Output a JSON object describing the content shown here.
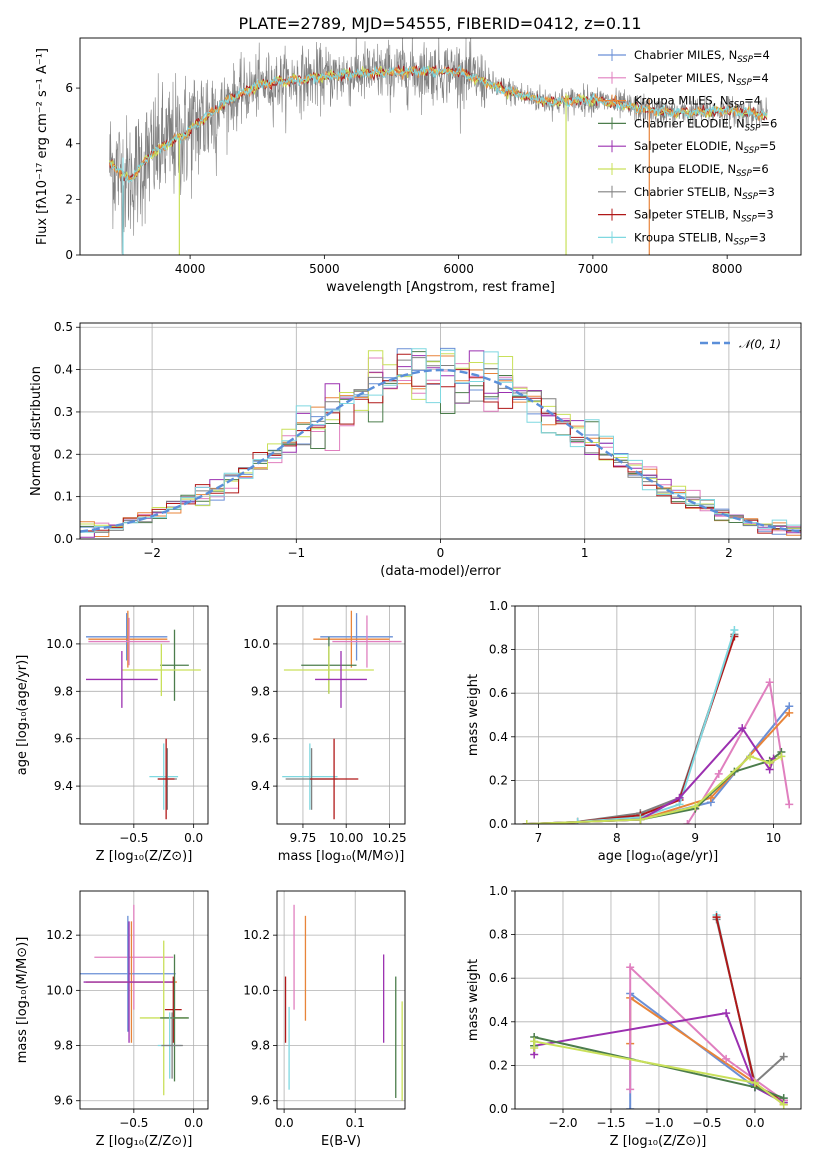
{
  "figure": {
    "title": "PLATE=2789, MJD=54555, FIBERID=0412, z=0.11"
  },
  "colors": {
    "chabrier_miles": "#6a8fd6",
    "salpeter_miles": "#e07fbf",
    "kroupa_miles": "#e8843a",
    "chabrier_elodie": "#4c7d4c",
    "salpeter_elodie": "#9b30b0",
    "kroupa_elodie": "#c9e05a",
    "chabrier_stelib": "#808080",
    "salpeter_stelib": "#b01818",
    "kroupa_stelib": "#7fd8e0",
    "normal": "#5b8fd9",
    "grid": "#b0b0b0"
  },
  "legend": [
    {
      "key": "chabrier_miles",
      "label": "Chabrier MILES, N",
      "sub": "SSP",
      "tail": "=4"
    },
    {
      "key": "salpeter_miles",
      "label": "Salpeter MILES, N",
      "sub": "SSP",
      "tail": "=4"
    },
    {
      "key": "kroupa_miles",
      "label": "Kroupa MILES, N",
      "sub": "SSP",
      "tail": "=4"
    },
    {
      "key": "chabrier_elodie",
      "label": "Chabrier ELODIE, N",
      "sub": "SSP",
      "tail": "=6"
    },
    {
      "key": "salpeter_elodie",
      "label": "Salpeter ELODIE, N",
      "sub": "SSP",
      "tail": "=5"
    },
    {
      "key": "kroupa_elodie",
      "label": "Kroupa ELODIE, N",
      "sub": "SSP",
      "tail": "=6"
    },
    {
      "key": "chabrier_stelib",
      "label": "Chabrier STELIB, N",
      "sub": "SSP",
      "tail": "=3"
    },
    {
      "key": "salpeter_stelib",
      "label": "Salpeter STELIB, N",
      "sub": "SSP",
      "tail": "=3"
    },
    {
      "key": "kroupa_stelib",
      "label": "Kroupa STELIB, N",
      "sub": "SSP",
      "tail": "=3"
    }
  ],
  "chart_data": [
    {
      "id": "spectrum",
      "type": "line",
      "xlabel": "wavelength [Angstrom, rest frame]",
      "ylabel": "Flux [fλ10⁻¹⁷ erg cm⁻² s⁻¹ A⁻¹]",
      "xlim": [
        3180,
        8550
      ],
      "ylim": [
        0,
        7.8
      ],
      "xticks": [
        4000,
        5000,
        6000,
        7000,
        8000
      ],
      "yticks": [
        0,
        2,
        4,
        6
      ],
      "legend_position": "top-right",
      "continuum_nodes": {
        "x": [
          3400,
          3550,
          3700,
          3800,
          3950,
          4100,
          4300,
          4500,
          4800,
          5200,
          5600,
          6000,
          6300,
          6500,
          6700,
          7000,
          7300,
          7600,
          8000,
          8300
        ],
        "y": [
          3.3,
          2.7,
          3.6,
          3.9,
          4.3,
          4.9,
          5.6,
          6.1,
          6.3,
          6.5,
          6.6,
          6.6,
          6.0,
          5.7,
          5.5,
          5.6,
          5.3,
          5.1,
          5.2,
          5.0
        ]
      },
      "spikes": [
        {
          "x": 3500,
          "y_top": 3.5,
          "y_bottom": 0.0
        },
        {
          "x": 3920,
          "y_top": 4.2,
          "y_bottom": 0.0
        },
        {
          "x": 6800,
          "y_top": 5.8,
          "y_bottom": 0.0
        },
        {
          "x": 7420,
          "y_top": 5.6,
          "y_bottom": 0.0
        }
      ]
    },
    {
      "id": "residuals",
      "type": "step",
      "xlabel": "(data-model)/error",
      "ylabel": "Normed distribution",
      "xlim": [
        -2.5,
        2.5
      ],
      "ylim": [
        0,
        0.51
      ],
      "xticks": [
        -2,
        -1,
        0,
        1,
        2
      ],
      "yticks": [
        0.0,
        0.1,
        0.2,
        0.3,
        0.4,
        0.5
      ],
      "bin_width": 0.1,
      "normal_label": "𝒩(0, 1)",
      "legend_position": "top-right"
    },
    {
      "id": "age_vs_Z",
      "type": "errorbar",
      "xlabel": "Z [log₁₀(Z/Z⊙)]",
      "ylabel": "age  [log₁₀(age/yr)]",
      "xlim": [
        -0.95,
        0.12
      ],
      "ylim": [
        9.24,
        10.16
      ],
      "xticks": [
        -0.5,
        0.0
      ],
      "yticks": [
        9.4,
        9.6,
        9.8,
        10.0
      ],
      "points": [
        {
          "key": "chabrier_miles",
          "x": -0.56,
          "xerr": 0.34,
          "y": 10.03,
          "yerr": 0.1
        },
        {
          "key": "kroupa_miles",
          "x": -0.55,
          "xerr": 0.33,
          "y": 10.02,
          "yerr": 0.12
        },
        {
          "key": "salpeter_miles",
          "x": -0.54,
          "xerr": 0.34,
          "y": 10.01,
          "yerr": 0.1
        },
        {
          "key": "chabrier_elodie",
          "x": -0.16,
          "xerr": 0.12,
          "y": 9.91,
          "yerr": 0.15
        },
        {
          "key": "kroupa_elodie",
          "x": -0.27,
          "xerr": 0.33,
          "y": 9.89,
          "yerr": 0.11
        },
        {
          "key": "salpeter_elodie",
          "x": -0.6,
          "xerr": 0.3,
          "y": 9.85,
          "yerr": 0.12
        },
        {
          "key": "kroupa_stelib",
          "x": -0.25,
          "xerr": 0.12,
          "y": 9.44,
          "yerr": 0.14
        },
        {
          "key": "chabrier_stelib",
          "x": -0.22,
          "xerr": 0.08,
          "y": 9.43,
          "yerr": 0.13
        },
        {
          "key": "salpeter_stelib",
          "x": -0.23,
          "xerr": 0.07,
          "y": 9.43,
          "yerr": 0.17
        }
      ]
    },
    {
      "id": "age_vs_mass",
      "type": "errorbar",
      "xlabel": "mass [log₁₀(M/M⊙)]",
      "ylabel": "",
      "xlim": [
        9.6,
        10.34
      ],
      "ylim": [
        9.24,
        10.16
      ],
      "xticks": [
        9.75,
        10.0,
        10.25
      ],
      "yticks": [
        9.4,
        9.6,
        9.8,
        10.0
      ],
      "points": [
        {
          "key": "chabrier_miles",
          "x": 10.06,
          "xerr": 0.21,
          "y": 10.03,
          "yerr": 0.1
        },
        {
          "key": "kroupa_miles",
          "x": 10.03,
          "xerr": 0.22,
          "y": 10.02,
          "yerr": 0.12
        },
        {
          "key": "salpeter_miles",
          "x": 10.12,
          "xerr": 0.2,
          "y": 10.01,
          "yerr": 0.11
        },
        {
          "key": "chabrier_elodie",
          "x": 9.9,
          "xerr": 0.16,
          "y": 9.91,
          "yerr": 0.12
        },
        {
          "key": "kroupa_elodie",
          "x": 9.9,
          "xerr": 0.26,
          "y": 9.89,
          "yerr": 0.1
        },
        {
          "key": "salpeter_elodie",
          "x": 9.97,
          "xerr": 0.15,
          "y": 9.85,
          "yerr": 0.12
        },
        {
          "key": "kroupa_stelib",
          "x": 9.79,
          "xerr": 0.16,
          "y": 9.44,
          "yerr": 0.14
        },
        {
          "key": "chabrier_stelib",
          "x": 9.8,
          "xerr": 0.15,
          "y": 9.43,
          "yerr": 0.13
        },
        {
          "key": "salpeter_stelib",
          "x": 9.93,
          "xerr": 0.14,
          "y": 9.43,
          "yerr": 0.17
        }
      ]
    },
    {
      "id": "weight_vs_age",
      "type": "line",
      "xlabel": "age  [log₁₀(age/yr)]",
      "ylabel": "mass weight",
      "xlim": [
        6.7,
        10.35
      ],
      "ylim": [
        0,
        1.0
      ],
      "xticks": [
        7,
        8,
        9,
        10
      ],
      "yticks": [
        0.0,
        0.2,
        0.4,
        0.6,
        0.8,
        1.0
      ],
      "series": [
        {
          "key": "chabrier_stelib",
          "x": [
            7.5,
            8.3,
            8.8,
            9.5
          ],
          "y": [
            0.01,
            0.05,
            0.12,
            0.87
          ]
        },
        {
          "key": "salpeter_stelib",
          "x": [
            7.5,
            8.3,
            8.8,
            9.5
          ],
          "y": [
            0.01,
            0.04,
            0.11,
            0.86
          ]
        },
        {
          "key": "kroupa_stelib",
          "x": [
            7.5,
            8.3,
            8.8,
            9.5
          ],
          "y": [
            0.01,
            0.03,
            0.09,
            0.89
          ]
        },
        {
          "key": "chabrier_miles",
          "x": [
            6.85,
            8.3,
            9.2,
            10.2
          ],
          "y": [
            0.0,
            0.02,
            0.1,
            0.54
          ]
        },
        {
          "key": "salpeter_miles",
          "x": [
            8.9,
            9.3,
            9.95,
            10.2
          ],
          "y": [
            0.0,
            0.23,
            0.65,
            0.09
          ]
        },
        {
          "key": "kroupa_miles",
          "x": [
            6.85,
            8.3,
            9.2,
            10.2
          ],
          "y": [
            0.0,
            0.02,
            0.12,
            0.51
          ]
        },
        {
          "key": "chabrier_elodie",
          "x": [
            6.85,
            8.3,
            9.0,
            9.5,
            9.95,
            10.1
          ],
          "y": [
            0.0,
            0.02,
            0.07,
            0.24,
            0.29,
            0.33
          ]
        },
        {
          "key": "salpeter_elodie",
          "x": [
            6.85,
            8.3,
            8.8,
            9.6,
            9.95,
            10.0
          ],
          "y": [
            0.0,
            0.02,
            0.12,
            0.44,
            0.25,
            0.3
          ]
        },
        {
          "key": "kroupa_elodie",
          "x": [
            6.85,
            8.3,
            9.0,
            9.7,
            9.95,
            10.1
          ],
          "y": [
            0.0,
            0.02,
            0.08,
            0.31,
            0.28,
            0.31
          ]
        }
      ]
    },
    {
      "id": "mass_vs_Z",
      "type": "errorbar",
      "xlabel": "Z [log₁₀(Z/Z⊙)]",
      "ylabel": "mass [log₁₀(M/M⊙)]",
      "xlim": [
        -0.95,
        0.12
      ],
      "ylim": [
        9.57,
        10.36
      ],
      "xticks": [
        -0.5,
        0.0
      ],
      "yticks": [
        9.6,
        9.8,
        10.0,
        10.2
      ],
      "points": [
        {
          "key": "salpeter_miles",
          "x": -0.5,
          "xerr": 0.33,
          "y": 10.12,
          "yerr": 0.19
        },
        {
          "key": "chabrier_miles",
          "x": -0.55,
          "xerr": 0.4,
          "y": 10.06,
          "yerr": 0.21
        },
        {
          "key": "kroupa_miles",
          "x": -0.52,
          "xerr": 0.38,
          "y": 10.03,
          "yerr": 0.22
        },
        {
          "key": "salpeter_elodie",
          "x": -0.54,
          "xerr": 0.38,
          "y": 10.03,
          "yerr": 0.22
        },
        {
          "key": "salpeter_stelib",
          "x": -0.17,
          "xerr": 0.07,
          "y": 9.93,
          "yerr": 0.12
        },
        {
          "key": "kroupa_elodie",
          "x": -0.25,
          "xerr": 0.2,
          "y": 9.9,
          "yerr": 0.28
        },
        {
          "key": "chabrier_elodie",
          "x": -0.16,
          "xerr": 0.12,
          "y": 9.9,
          "yerr": 0.23
        },
        {
          "key": "kroupa_stelib",
          "x": -0.2,
          "xerr": 0.1,
          "y": 9.8,
          "yerr": 0.12
        },
        {
          "key": "chabrier_stelib",
          "x": -0.18,
          "xerr": 0.09,
          "y": 9.8,
          "yerr": 0.12
        }
      ]
    },
    {
      "id": "mass_vs_ebv",
      "type": "errorbar",
      "xlabel": "E(B-V)",
      "ylabel": "",
      "xlim": [
        -0.01,
        0.17
      ],
      "ylim": [
        9.57,
        10.36
      ],
      "xticks": [
        0.0,
        0.1
      ],
      "yticks": [
        9.6,
        9.8,
        10.0,
        10.2
      ],
      "points": [
        {
          "key": "salpeter_stelib",
          "x": 0.002,
          "xerr": 0,
          "y": 9.93,
          "yerr": 0.12
        },
        {
          "key": "kroupa_stelib",
          "x": 0.007,
          "xerr": 0,
          "y": 9.79,
          "yerr": 0.15
        },
        {
          "key": "salpeter_miles",
          "x": 0.014,
          "xerr": 0,
          "y": 10.12,
          "yerr": 0.19
        },
        {
          "key": "kroupa_miles",
          "x": 0.03,
          "xerr": 0,
          "y": 10.08,
          "yerr": 0.19
        },
        {
          "key": "salpeter_elodie",
          "x": 0.14,
          "xerr": 0,
          "y": 9.97,
          "yerr": 0.16
        },
        {
          "key": "chabrier_elodie",
          "x": 0.157,
          "xerr": 0,
          "y": 9.83,
          "yerr": 0.22
        },
        {
          "key": "kroupa_elodie",
          "x": 0.166,
          "xerr": 0,
          "y": 9.78,
          "yerr": 0.18
        }
      ]
    },
    {
      "id": "weight_vs_Z",
      "type": "line",
      "xlabel": "Z [log₁₀(Z/Z⊙)]",
      "ylabel": "mass weight",
      "xlim": [
        -2.5,
        0.48
      ],
      "ylim": [
        0,
        1.0
      ],
      "xticks": [
        -2.0,
        -1.5,
        -1.0,
        -0.5,
        0.0
      ],
      "yticks": [
        0.0,
        0.2,
        0.4,
        0.6,
        0.8,
        1.0
      ],
      "series": [
        {
          "key": "chabrier_stelib",
          "x": [
            -0.4,
            0.0,
            0.3
          ],
          "y": [
            0.87,
            0.12,
            0.24
          ]
        },
        {
          "key": "kroupa_stelib",
          "x": [
            -0.4,
            0.0,
            0.3
          ],
          "y": [
            0.89,
            0.1,
            0.05
          ]
        },
        {
          "key": "salpeter_stelib",
          "x": [
            -0.4,
            0.0,
            0.3
          ],
          "y": [
            0.88,
            0.11,
            0.04
          ]
        },
        {
          "key": "chabrier_miles",
          "x": [
            -1.3,
            -1.3,
            0.0,
            0.3
          ],
          "y": [
            0.0,
            0.53,
            0.1,
            0.03
          ]
        },
        {
          "key": "kroupa_miles",
          "x": [
            -1.3,
            -1.3,
            0.0,
            0.3
          ],
          "y": [
            0.3,
            0.51,
            0.12,
            0.02
          ]
        },
        {
          "key": "salpeter_miles",
          "x": [
            -1.3,
            -1.3,
            -0.3,
            0.3
          ],
          "y": [
            0.09,
            0.65,
            0.23,
            0.04
          ]
        },
        {
          "key": "salpeter_elodie",
          "x": [
            -2.3,
            -2.3,
            -0.3,
            0.0,
            0.3
          ],
          "y": [
            0.25,
            0.29,
            0.44,
            0.1,
            0.03
          ]
        },
        {
          "key": "chabrier_elodie",
          "x": [
            -2.3,
            -2.3,
            0.0,
            0.3
          ],
          "y": [
            0.29,
            0.33,
            0.1,
            0.05
          ]
        },
        {
          "key": "kroupa_elodie",
          "x": [
            -2.3,
            -2.3,
            0.0,
            0.3
          ],
          "y": [
            0.28,
            0.31,
            0.12,
            0.02
          ]
        }
      ]
    }
  ]
}
